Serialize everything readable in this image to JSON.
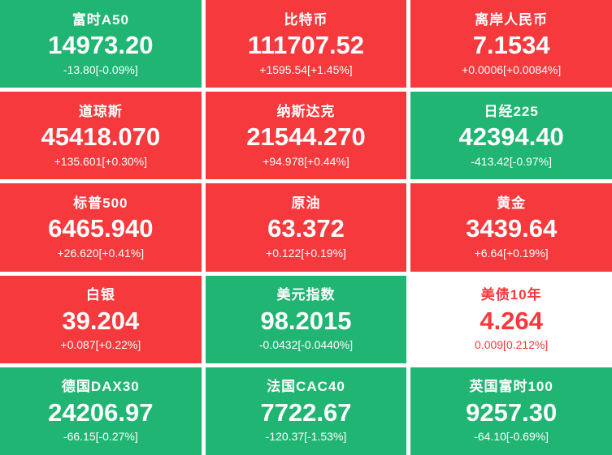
{
  "colors": {
    "tile_green": "#21b573",
    "tile_red": "#f5393c",
    "tile_white": "#ffffff",
    "text_on_colored_tile": "#ffffff",
    "text_on_white_tile": "#f5393c"
  },
  "tiles": [
    {
      "name": "富时A50",
      "value": "14973.20",
      "change": "-13.80[-0.09%]",
      "variant": "green"
    },
    {
      "name": "比特币",
      "value": "111707.52",
      "change": "+1595.54[+1.45%]",
      "variant": "red"
    },
    {
      "name": "离岸人民币",
      "value": "7.1534",
      "change": "+0.0006[+0.0084%]",
      "variant": "red"
    },
    {
      "name": "道琼斯",
      "value": "45418.070",
      "change": "+135.601[+0.30%]",
      "variant": "red"
    },
    {
      "name": "纳斯达克",
      "value": "21544.270",
      "change": "+94.978[+0.44%]",
      "variant": "red"
    },
    {
      "name": "日经225",
      "value": "42394.40",
      "change": "-413.42[-0.97%]",
      "variant": "green"
    },
    {
      "name": "标普500",
      "value": "6465.940",
      "change": "+26.620[+0.41%]",
      "variant": "red"
    },
    {
      "name": "原油",
      "value": "63.372",
      "change": "+0.122[+0.19%]",
      "variant": "red"
    },
    {
      "name": "黄金",
      "value": "3439.64",
      "change": "+6.64[+0.19%]",
      "variant": "red"
    },
    {
      "name": "白银",
      "value": "39.204",
      "change": "+0.087[+0.22%]",
      "variant": "red"
    },
    {
      "name": "美元指数",
      "value": "98.2015",
      "change": "-0.0432[-0.0440%]",
      "variant": "green"
    },
    {
      "name": "美债10年",
      "value": "4.264",
      "change": "0.009[0.212%]",
      "variant": "white"
    },
    {
      "name": "德国DAX30",
      "value": "24206.97",
      "change": "-66.15[-0.27%]",
      "variant": "green"
    },
    {
      "name": "法国CAC40",
      "value": "7722.67",
      "change": "-120.37[-1.53%]",
      "variant": "green"
    },
    {
      "name": "英国富时100",
      "value": "9257.30",
      "change": "-64.10[-0.69%]",
      "variant": "green"
    }
  ]
}
